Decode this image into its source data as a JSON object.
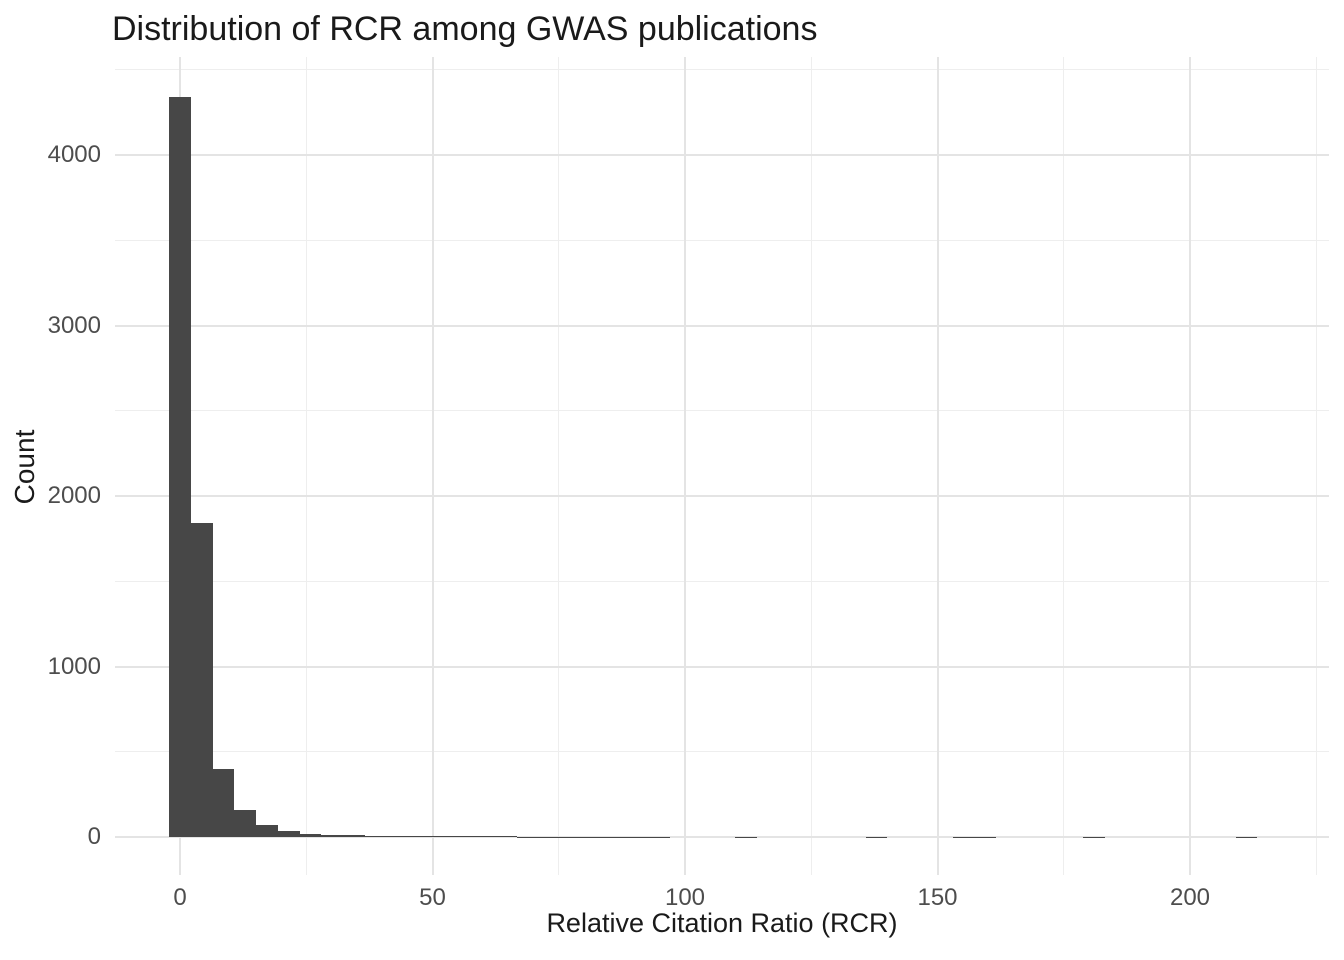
{
  "chart_data": {
    "type": "bar",
    "subtype": "histogram",
    "title": "Distribution of RCR among GWAS publications",
    "xlabel": "Relative Citation Ratio (RCR)",
    "ylabel": "Count",
    "x_major_ticks": [
      0,
      50,
      100,
      150,
      200
    ],
    "x_minor_gridlines": [
      25,
      75,
      125,
      175,
      225
    ],
    "y_major_ticks": [
      0,
      1000,
      2000,
      3000,
      4000
    ],
    "y_minor_gridlines": [
      500,
      1500,
      2500,
      3500,
      4500
    ],
    "xlim": [
      -12.9,
      227.5
    ],
    "ylim": [
      -223,
      4575
    ],
    "grid": true,
    "legend": false,
    "bin_width": 4.31,
    "bin_centers": [
      0,
      4.31,
      8.62,
      12.93,
      17.24,
      21.55,
      25.86,
      30.17,
      34.48,
      38.79,
      43.1,
      47.41,
      51.72,
      56.03,
      60.34,
      64.65,
      68.96,
      73.27,
      77.58,
      81.89,
      86.2,
      90.51,
      94.82,
      99.13,
      103.44,
      107.75,
      112.06,
      116.37,
      120.68,
      124.99,
      129.3,
      133.61,
      137.92,
      142.23,
      146.54,
      150.85,
      155.16,
      159.47,
      163.78,
      168.09,
      172.4,
      176.71,
      181.02,
      185.33,
      189.64,
      193.95,
      198.26,
      202.57,
      206.88,
      211.19
    ],
    "counts": [
      4340,
      1840,
      400,
      160,
      72,
      35,
      20,
      14,
      11,
      8,
      7,
      6,
      5,
      4,
      3,
      3,
      2,
      1,
      1,
      1,
      1,
      1,
      1,
      0,
      0,
      0,
      1,
      0,
      0,
      0,
      0,
      0,
      1,
      0,
      0,
      0,
      1,
      1,
      0,
      0,
      0,
      0,
      1,
      0,
      0,
      0,
      0,
      0,
      0,
      1
    ],
    "colors": {
      "bar": "#474747",
      "grid_major": "#e4e4e4",
      "grid_minor": "#eeeeee",
      "axis_text": "#4d4d4d",
      "title_text": "#1a1a1a",
      "background": "#ffffff"
    }
  }
}
